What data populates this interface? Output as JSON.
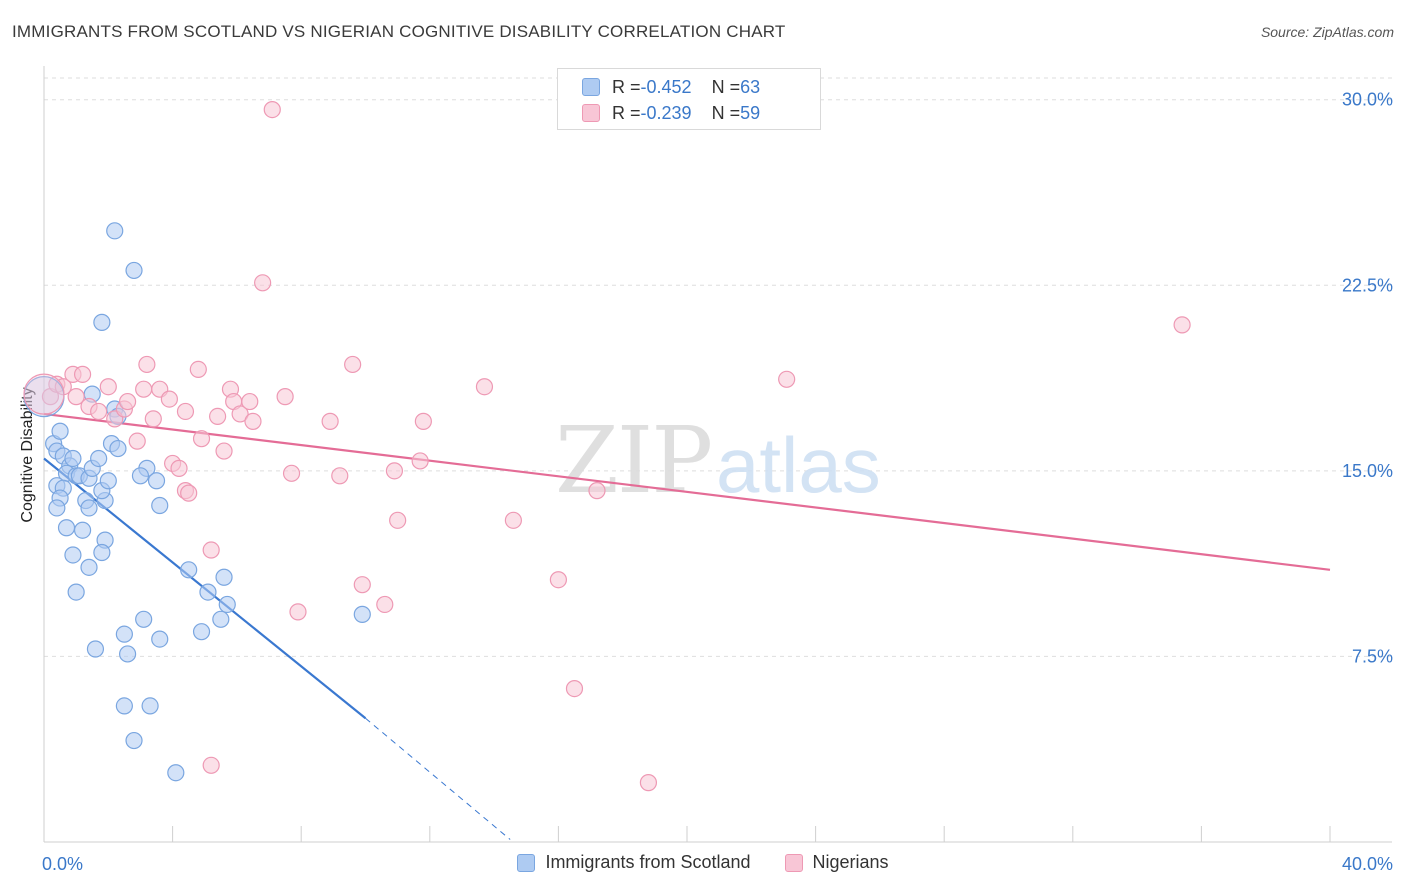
{
  "header": {
    "title": "IMMIGRANTS FROM SCOTLAND VS NIGERIAN COGNITIVE DISABILITY CORRELATION CHART",
    "source": "Source: ZipAtlas.com"
  },
  "watermark": {
    "zip": "ZIP",
    "atlas": "atlas"
  },
  "stats_box": {
    "rows": [
      {
        "r_label": "R = ",
        "r_value": "-0.452",
        "n_label": "N = ",
        "n_value": "63",
        "color": "#aecbf2",
        "border": "#7aa6e0"
      },
      {
        "r_label": "R = ",
        "r_value": "-0.239",
        "n_label": "N = ",
        "n_value": "59",
        "color": "#f8c6d6",
        "border": "#ee99b4"
      }
    ]
  },
  "chart_data": {
    "type": "scatter",
    "title": "IMMIGRANTS FROM SCOTLAND VS NIGERIAN COGNITIVE DISABILITY CORRELATION CHART",
    "xlabel": "",
    "ylabel": "Cognitive Disability",
    "xlim": [
      0,
      40
    ],
    "ylim": [
      0,
      31.2
    ],
    "x_tick_labels": [
      "0.0%",
      "40.0%"
    ],
    "y_ticks": [
      7.5,
      15.0,
      22.5,
      30.0
    ],
    "y_tick_labels": [
      "7.5%",
      "15.0%",
      "22.5%",
      "30.0%"
    ],
    "grid": true,
    "legend_position": "bottom",
    "series": [
      {
        "name": "Immigrants from Scotland",
        "color": "#7aa6e0",
        "fill": "#aecbf2",
        "line_color": "#3a78d0",
        "trend": {
          "x0": 0.0,
          "y0": 15.5,
          "x1": 10.0,
          "y1": 5.0,
          "dash_x1": 14.5,
          "dash_y1": 0.1
        },
        "points": [
          [
            0.3,
            16.1
          ],
          [
            0.5,
            16.6
          ],
          [
            0.4,
            15.8
          ],
          [
            0.6,
            15.6
          ],
          [
            0.8,
            15.2
          ],
          [
            0.9,
            15.5
          ],
          [
            0.7,
            14.9
          ],
          [
            1.0,
            14.8
          ],
          [
            0.4,
            14.4
          ],
          [
            0.6,
            14.3
          ],
          [
            1.1,
            14.8
          ],
          [
            1.4,
            14.7
          ],
          [
            1.5,
            15.1
          ],
          [
            0.5,
            13.9
          ],
          [
            0.4,
            13.5
          ],
          [
            1.3,
            13.8
          ],
          [
            1.4,
            13.5
          ],
          [
            1.9,
            13.8
          ],
          [
            1.8,
            14.2
          ],
          [
            2.0,
            14.6
          ],
          [
            2.1,
            16.1
          ],
          [
            1.7,
            15.5
          ],
          [
            2.3,
            15.9
          ],
          [
            1.5,
            18.1
          ],
          [
            2.2,
            17.5
          ],
          [
            2.3,
            17.2
          ],
          [
            0.7,
            12.7
          ],
          [
            1.2,
            12.6
          ],
          [
            1.9,
            12.2
          ],
          [
            0.9,
            11.6
          ],
          [
            1.8,
            11.7
          ],
          [
            1.4,
            11.1
          ],
          [
            1.0,
            10.1
          ],
          [
            3.2,
            15.1
          ],
          [
            3.5,
            14.6
          ],
          [
            3.6,
            13.6
          ],
          [
            3.0,
            14.8
          ],
          [
            2.8,
            23.1
          ],
          [
            2.2,
            24.7
          ],
          [
            1.8,
            21.0
          ],
          [
            4.5,
            11.0
          ],
          [
            5.1,
            10.1
          ],
          [
            5.6,
            10.7
          ],
          [
            5.7,
            9.6
          ],
          [
            3.1,
            9.0
          ],
          [
            2.5,
            8.4
          ],
          [
            3.6,
            8.2
          ],
          [
            4.9,
            8.5
          ],
          [
            5.5,
            9.0
          ],
          [
            1.6,
            7.8
          ],
          [
            2.6,
            7.6
          ],
          [
            2.5,
            5.5
          ],
          [
            3.3,
            5.5
          ],
          [
            2.8,
            4.1
          ],
          [
            4.1,
            2.8
          ],
          [
            9.9,
            9.2
          ]
        ]
      },
      {
        "name": "Nigerians",
        "color": "#ee99b4",
        "fill": "#f8c6d6",
        "line_color": "#e46c96",
        "trend": {
          "x0": 0.0,
          "y0": 17.3,
          "x1": 40.0,
          "y1": 11.0
        },
        "points": [
          [
            0.2,
            18.0
          ],
          [
            0.4,
            18.5
          ],
          [
            0.6,
            18.4
          ],
          [
            0.9,
            18.9
          ],
          [
            1.0,
            18.0
          ],
          [
            1.4,
            17.6
          ],
          [
            1.7,
            17.4
          ],
          [
            2.0,
            18.4
          ],
          [
            2.2,
            17.1
          ],
          [
            2.5,
            17.5
          ],
          [
            2.6,
            17.8
          ],
          [
            2.9,
            16.2
          ],
          [
            3.1,
            18.3
          ],
          [
            3.2,
            19.3
          ],
          [
            3.4,
            17.1
          ],
          [
            3.6,
            18.3
          ],
          [
            3.9,
            17.9
          ],
          [
            4.4,
            17.4
          ],
          [
            4.8,
            19.1
          ],
          [
            4.9,
            16.3
          ],
          [
            5.4,
            17.2
          ],
          [
            5.6,
            15.8
          ],
          [
            5.8,
            18.3
          ],
          [
            5.9,
            17.8
          ],
          [
            6.1,
            17.3
          ],
          [
            6.5,
            17.0
          ],
          [
            6.4,
            17.8
          ],
          [
            6.8,
            22.6
          ],
          [
            7.5,
            18.0
          ],
          [
            7.7,
            14.9
          ],
          [
            8.9,
            17.0
          ],
          [
            9.2,
            14.8
          ],
          [
            9.6,
            19.3
          ],
          [
            10.9,
            15.0
          ],
          [
            11.8,
            17.0
          ],
          [
            11.7,
            15.4
          ],
          [
            13.7,
            18.4
          ],
          [
            14.6,
            13.0
          ],
          [
            4.0,
            15.3
          ],
          [
            4.2,
            15.1
          ],
          [
            4.4,
            14.2
          ],
          [
            4.5,
            14.1
          ],
          [
            5.2,
            11.8
          ],
          [
            7.9,
            9.3
          ],
          [
            9.9,
            10.4
          ],
          [
            10.6,
            9.6
          ],
          [
            11.0,
            13.0
          ],
          [
            16.0,
            10.6
          ],
          [
            16.5,
            6.2
          ],
          [
            17.2,
            14.2
          ],
          [
            18.8,
            2.4
          ],
          [
            23.1,
            18.7
          ],
          [
            35.4,
            20.9
          ],
          [
            5.2,
            3.1
          ],
          [
            7.1,
            29.6
          ],
          [
            1.2,
            18.9
          ]
        ]
      }
    ],
    "large_points": [
      {
        "series": "Immigrants from Scotland",
        "x": 0.0,
        "y": 18.0
      },
      {
        "series": "Nigerians",
        "x": 0.0,
        "y": 18.1
      }
    ]
  }
}
